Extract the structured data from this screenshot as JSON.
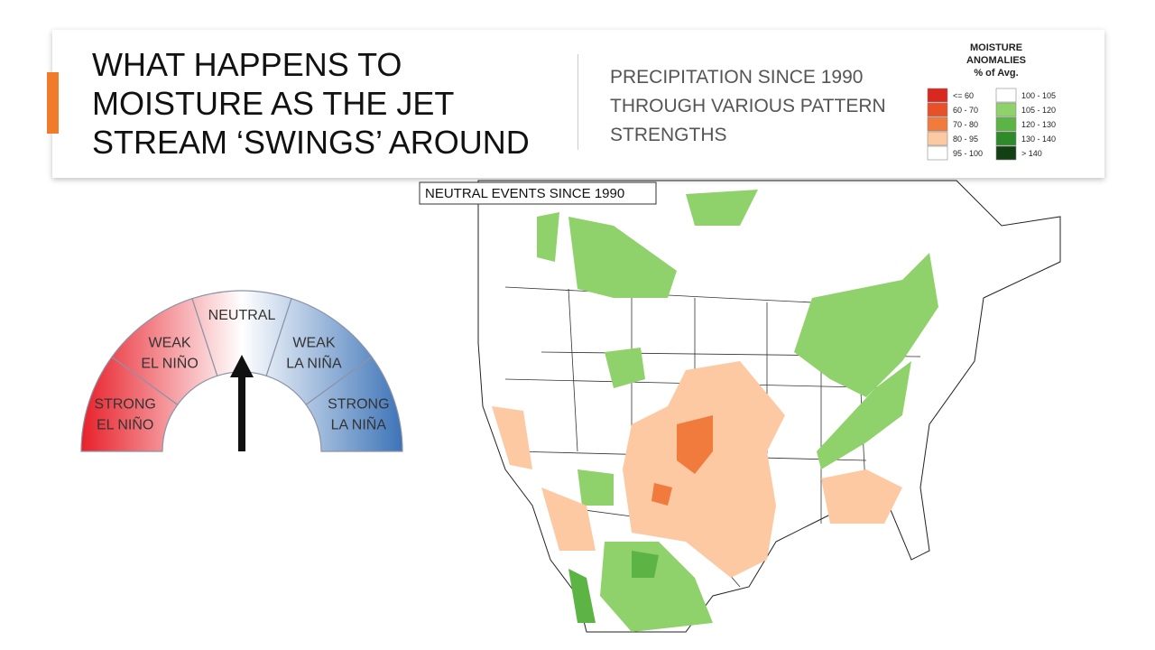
{
  "header": {
    "title_lines": [
      "WHAT HAPPENS TO",
      "MOISTURE AS THE JET",
      "STREAM ‘SWINGS’ AROUND"
    ],
    "subtitle_lines": [
      "PRECIPITATION SINCE 1990",
      "THROUGH VARIOUS PATTERN",
      "STRENGTHS"
    ]
  },
  "legend": {
    "title_lines": [
      "MOISTURE",
      "ANOMALIES",
      "% of Avg."
    ],
    "items": [
      {
        "label": "<= 60",
        "color": "#d9281f"
      },
      {
        "label": "60 - 70",
        "color": "#e8502a"
      },
      {
        "label": "70 - 80",
        "color": "#f07b3c"
      },
      {
        "label": "80 - 95",
        "color": "#fcc9a3"
      },
      {
        "label": "95 - 100",
        "color": "#ffffff"
      },
      {
        "label": "100 - 105",
        "color": "#ffffff"
      },
      {
        "label": "105 - 120",
        "color": "#8fd16a"
      },
      {
        "label": "120 - 130",
        "color": "#5cb445"
      },
      {
        "label": "130 - 140",
        "color": "#2f8a2a"
      },
      {
        "label": "> 140",
        "color": "#123f13"
      }
    ]
  },
  "map": {
    "label": "NEUTRAL EVENTS SINCE 1990"
  },
  "gauge": {
    "segments": [
      [
        "STRONG",
        "EL NIÑO"
      ],
      [
        "WEAK",
        "EL NIÑO"
      ],
      [
        "NEUTRAL"
      ],
      [
        "WEAK",
        "LA NIÑA"
      ],
      [
        "STRONG",
        "LA NIÑA"
      ]
    ]
  }
}
